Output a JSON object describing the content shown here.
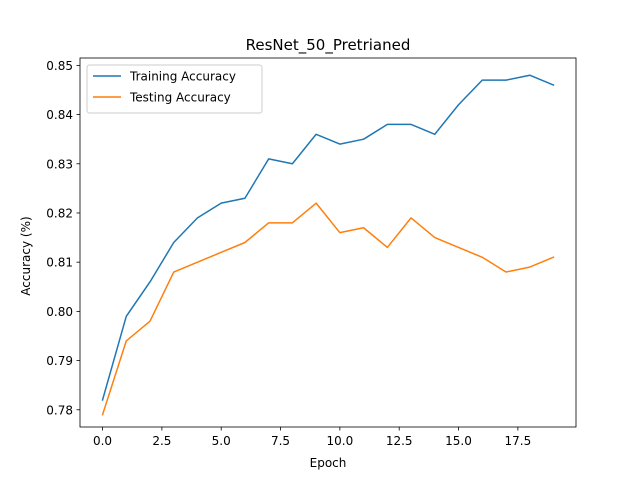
{
  "chart_data": {
    "type": "line",
    "title": "ResNet_50_Pretrianed",
    "xlabel": "Epoch",
    "ylabel": "Accuracy (%)",
    "xlim": [
      -0.95,
      19.95
    ],
    "ylim": [
      0.7765,
      0.8515
    ],
    "xticks": [
      0,
      2.5,
      5,
      7.5,
      10,
      12.5,
      15,
      17.5
    ],
    "xtick_labels": [
      "0.0",
      "2.5",
      "5.0",
      "7.5",
      "10.0",
      "12.5",
      "15.0",
      "17.5"
    ],
    "yticks": [
      0.78,
      0.79,
      0.8,
      0.81,
      0.82,
      0.83,
      0.84,
      0.85
    ],
    "ytick_labels": [
      "0.78",
      "0.79",
      "0.80",
      "0.81",
      "0.82",
      "0.83",
      "0.84",
      "0.85"
    ],
    "grid": false,
    "legend_position": "top-left",
    "x": [
      0,
      1,
      2,
      3,
      4,
      5,
      6,
      7,
      8,
      9,
      10,
      11,
      12,
      13,
      14,
      15,
      16,
      17,
      18,
      19
    ],
    "series": [
      {
        "name": "Training Accuracy",
        "color": "#1f77b4",
        "values": [
          0.782,
          0.799,
          0.806,
          0.814,
          0.819,
          0.822,
          0.823,
          0.831,
          0.83,
          0.836,
          0.834,
          0.835,
          0.838,
          0.838,
          0.836,
          0.842,
          0.847,
          0.847,
          0.848,
          0.846
        ]
      },
      {
        "name": "Testing Accuracy",
        "color": "#ff7f0e",
        "values": [
          0.779,
          0.794,
          0.798,
          0.808,
          0.81,
          0.812,
          0.814,
          0.818,
          0.818,
          0.822,
          0.816,
          0.817,
          0.813,
          0.819,
          0.815,
          0.813,
          0.811,
          0.808,
          0.809,
          0.811
        ]
      }
    ]
  }
}
